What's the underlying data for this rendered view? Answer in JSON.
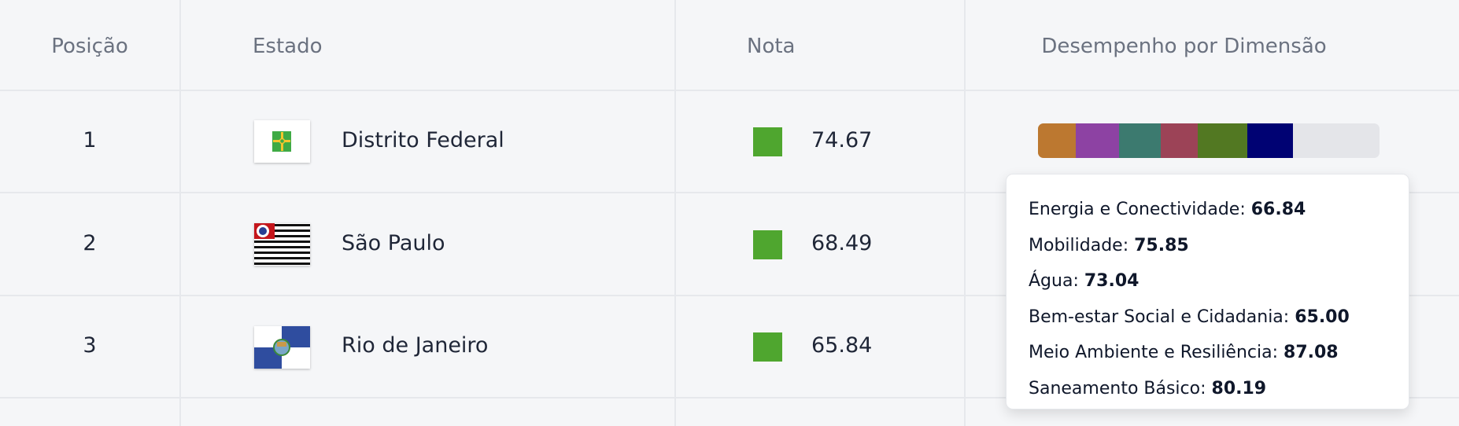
{
  "headers": {
    "position": "Posição",
    "state": "Estado",
    "score": "Nota",
    "dimensions": "Desempenho por Dimensão"
  },
  "score_color": "#4fa62f",
  "rows": [
    {
      "position": "1",
      "state": "Distrito Federal",
      "score": "74.67",
      "flag": "distrito-federal-flag"
    },
    {
      "position": "2",
      "state": "São Paulo",
      "score": "68.49",
      "flag": "sao-paulo-flag"
    },
    {
      "position": "3",
      "state": "Rio de Janeiro",
      "score": "65.84",
      "flag": "rio-de-janeiro-flag"
    }
  ],
  "dimension_bar": {
    "row": 1,
    "segments": [
      {
        "label": "Energia e Conectividade",
        "value": 66.84,
        "color": "#bc7830"
      },
      {
        "label": "Mobilidade",
        "value": 75.85,
        "color": "#8d42a3"
      },
      {
        "label": "Água",
        "value": 73.04,
        "color": "#3c7a6f"
      },
      {
        "label": "Bem-estar Social e Cidadania",
        "value": 65.0,
        "color": "#9c4357"
      },
      {
        "label": "Meio Ambiente e Resiliência",
        "value": 87.08,
        "color": "#527822"
      },
      {
        "label": "Saneamento Básico",
        "value": 80.19,
        "color": "#000273"
      }
    ]
  },
  "tooltip": [
    {
      "label": "Energia e Conectividade:",
      "value": "66.84"
    },
    {
      "label": "Mobilidade:",
      "value": "75.85"
    },
    {
      "label": "Água:",
      "value": "73.04"
    },
    {
      "label": "Bem-estar Social e Cidadania:",
      "value": "65.00"
    },
    {
      "label": "Meio Ambiente e Resiliência:",
      "value": "87.08"
    },
    {
      "label": "Saneamento Básico:",
      "value": "80.19"
    }
  ]
}
